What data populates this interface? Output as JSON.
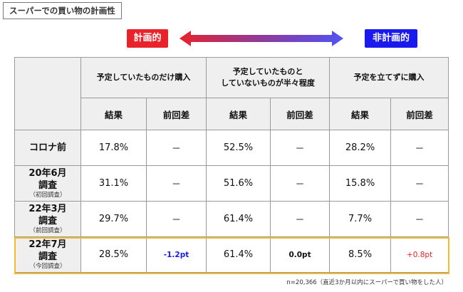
{
  "title": "スーパーでの買い物の計画性",
  "badges": {
    "planned": "計画的",
    "unplanned": "非計画的"
  },
  "colors": {
    "planned": "#e8232a",
    "unplanned": "#1a1aee",
    "highlight": "#f3bb2b",
    "header_bg": "#efefef"
  },
  "chart_data": {
    "type": "table",
    "groups": [
      {
        "label_line1": "予定していたものだけ購入",
        "label_line2": ""
      },
      {
        "label_line1": "予定していたものと",
        "label_line2": "していないものが半々程度"
      },
      {
        "label_line1": "予定を立てずに購入",
        "label_line2": ""
      }
    ],
    "subheaders": {
      "result": "結果",
      "diff": "前回差"
    },
    "rows": [
      {
        "label": "コロナ前",
        "sublabel": "",
        "cells": [
          {
            "result": "17.8%",
            "diff": "－",
            "diff_style": "none"
          },
          {
            "result": "52.5%",
            "diff": "－",
            "diff_style": "none"
          },
          {
            "result": "28.2%",
            "diff": "－",
            "diff_style": "none"
          }
        ]
      },
      {
        "label": "20年6月",
        "label2": "調査",
        "sublabel": "（初回調査）",
        "cells": [
          {
            "result": "31.1%",
            "diff": "－",
            "diff_style": "none"
          },
          {
            "result": "51.6%",
            "diff": "－",
            "diff_style": "none"
          },
          {
            "result": "15.8%",
            "diff": "－",
            "diff_style": "none"
          }
        ]
      },
      {
        "label": "22年3月",
        "label2": "調査",
        "sublabel": "（前回調査）",
        "cells": [
          {
            "result": "29.7%",
            "diff": "－",
            "diff_style": "none"
          },
          {
            "result": "61.4%",
            "diff": "－",
            "diff_style": "none"
          },
          {
            "result": "7.7%",
            "diff": "－",
            "diff_style": "none"
          }
        ]
      },
      {
        "label": "22年7月",
        "label2": "調査",
        "sublabel": "（今回調査）",
        "cells": [
          {
            "result": "28.5%",
            "diff": "-1.2pt",
            "diff_style": "neg"
          },
          {
            "result": "61.4%",
            "diff": "0.0pt",
            "diff_style": "zero"
          },
          {
            "result": "8.5%",
            "diff": "+0.8pt",
            "diff_style": "pos"
          }
        ]
      }
    ]
  },
  "footnote": "n=20,366（直近3か月以内にスーパーで買い物をした人）"
}
